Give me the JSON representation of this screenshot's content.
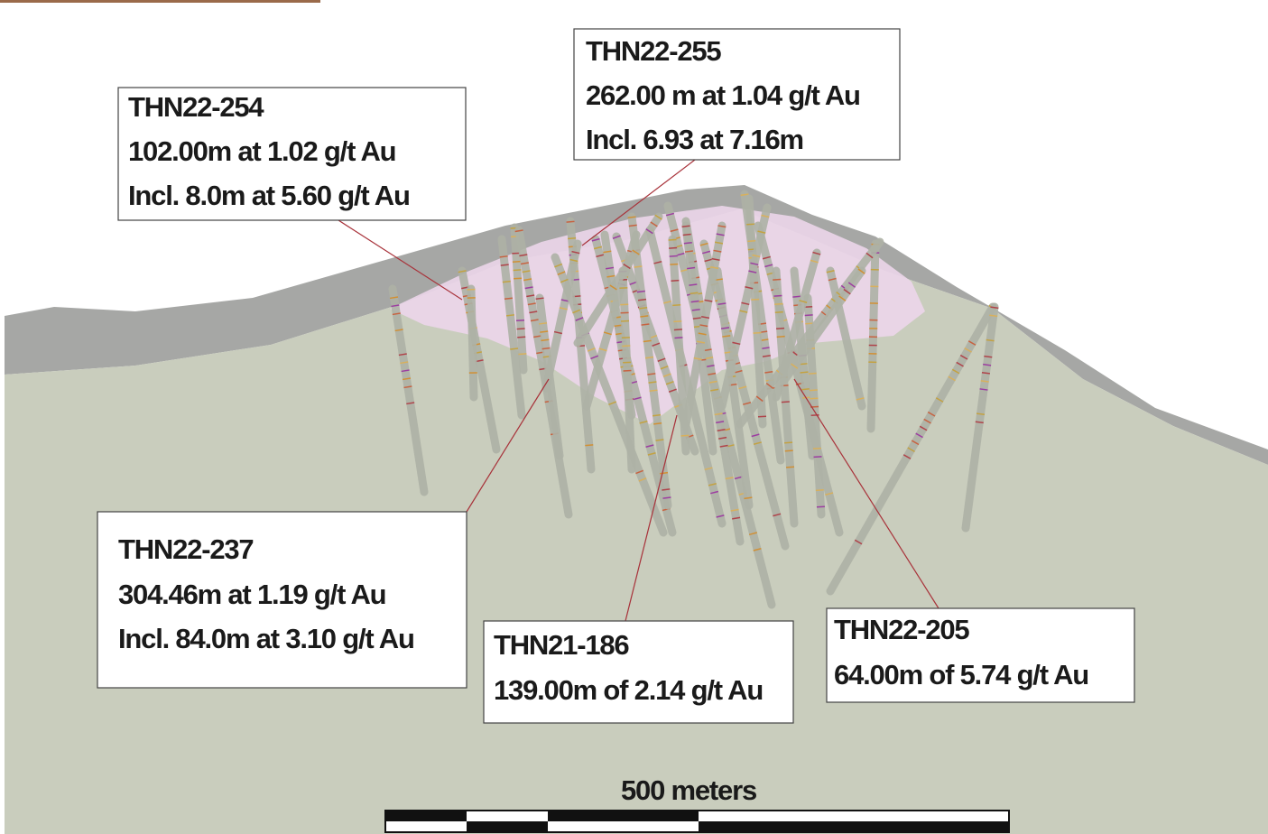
{
  "callouts": [
    {
      "hole": "THN22-254",
      "lines": [
        "102.00m at 1.02 g/t Au",
        "Incl. 8.0m at 5.60 g/t Au"
      ]
    },
    {
      "hole": "THN22-255",
      "lines": [
        "262.00 m at 1.04 g/t Au",
        "Incl. 6.93 at 7.16m"
      ]
    },
    {
      "hole": "THN22-237",
      "lines": [
        "304.46m at 1.19 g/t Au",
        "Incl. 84.0m at 3.10 g/t Au"
      ]
    },
    {
      "hole": "THN21-186",
      "lines": [
        "139.00m of 2.14 g/t Au"
      ]
    },
    {
      "hole": "THN22-205",
      "lines": [
        "64.00m of 5.74 g/t Au"
      ]
    }
  ],
  "scale_bar": {
    "label": "500 meters"
  }
}
